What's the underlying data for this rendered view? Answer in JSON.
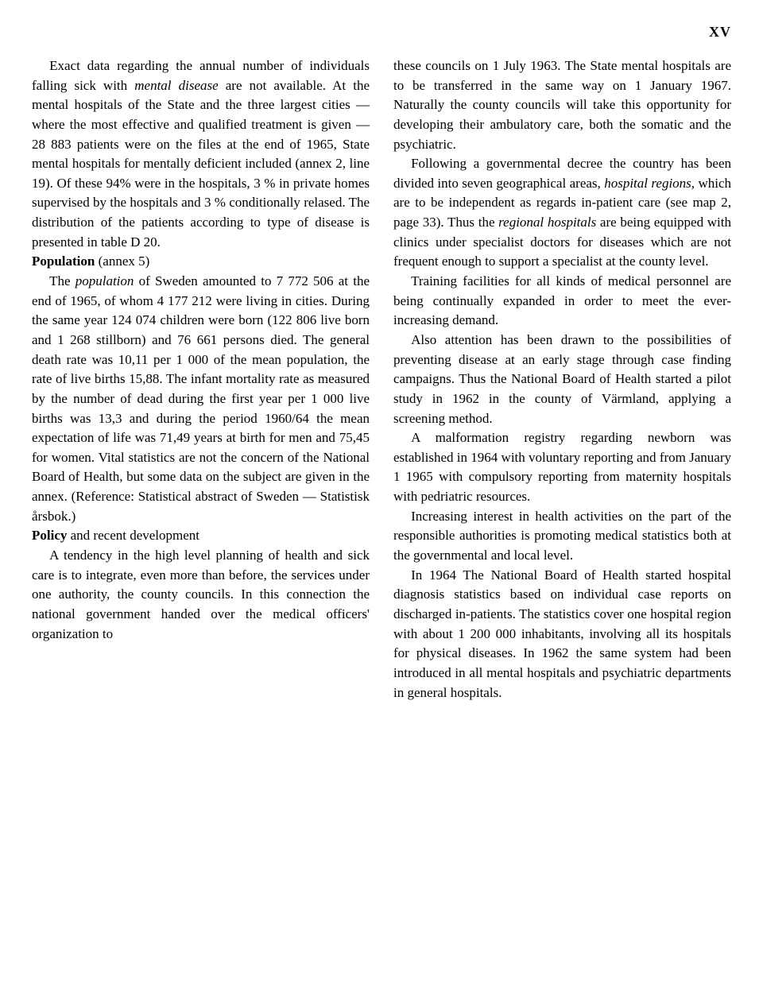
{
  "page_number": "XV",
  "left": {
    "p1": "Exact data regarding the annual number of individuals falling sick with ",
    "p1_i": "mental disease",
    "p1_end": " are not available. At the mental hospitals of the State and the three largest cities — where the most effective and qualified treatment is given — 28 883 patients were on the files at the end of 1965, State mental hospitals for mentally deficient included (annex 2, line 19). Of these 94% were in the hospitals, 3 % in private homes supervised by the hospitals and 3 % conditionally relased. The distribution of the patients according to type of disease is presented in table D 20.",
    "h1_bold": "Population",
    "h1_light": " (annex 5)",
    "p2a": "The ",
    "p2_i": "population",
    "p2b": " of Sweden amounted to 7 772 506 at the end of 1965, of whom 4 177 212 were living in cities. During the same year 124 074 children were born (122 806 live born and 1 268 stillborn) and 76 661 persons died. The general death rate was 10,11 per 1 000 of the mean population, the rate of live births 15,88. The infant mortality rate as measured by the number of dead during the first year per 1 000 live births was 13,3 and during the period 1960/64 the mean expectation of life was 71,49 years at birth for men and 75,45 for women. Vital statistics are not the concern of the National Board of Health, but some data on the subject are given in the annex. (Reference: Statistical abstract of Sweden — Statistisk årsbok.)",
    "h2_bold": "Policy",
    "h2_light": " and recent development",
    "p3": "A tendency in the high level planning of health and sick care is to integrate, even more than before, the services under one authority, the county councils. In this connection the national government handed over the medical officers' organization to"
  },
  "right": {
    "p1": "these councils on 1 July 1963. The State mental hospitals are to be transferred in the same way on 1 January 1967. Naturally the county councils will take this opportunity for developing their ambulatory care, both the somatic and the psychiatric.",
    "p2a": "Following a governmental decree the country has been divided into seven geographical areas, ",
    "p2_i1": "hospital regions,",
    "p2b": " which are to be independent as regards in-patient care (see map 2, page 33). Thus the ",
    "p2_i2": "regional hospitals",
    "p2c": " are being equipped with clinics under specialist doctors for diseases which are not frequent enough to support a specialist at the county level.",
    "p3": "Training facilities for all kinds of medical personnel are being continually expanded in order to meet the ever-increasing demand.",
    "p4": "Also attention has been drawn to the possibilities of preventing disease at an early stage through case finding campaigns. Thus the National Board of Health started a pilot study in 1962 in the county of Värmland, applying a screening method.",
    "p5": "A malformation registry regarding newborn was established in 1964 with voluntary reporting and from January 1 1965 with compulsory reporting from maternity hospitals with pedriatric resources.",
    "p6": "Increasing interest in health activities on the part of the responsible authorities is promoting medical statistics both at the governmental and local level.",
    "p7": "In 1964 The National Board of Health started hospital diagnosis statistics based on individual case reports on discharged in-patients. The statistics cover one hospital region with about 1 200 000 inhabitants, involving all its hospitals for physical diseases. In 1962 the same system had been introduced in all mental hospitals and psychiatric departments in general hospitals."
  }
}
